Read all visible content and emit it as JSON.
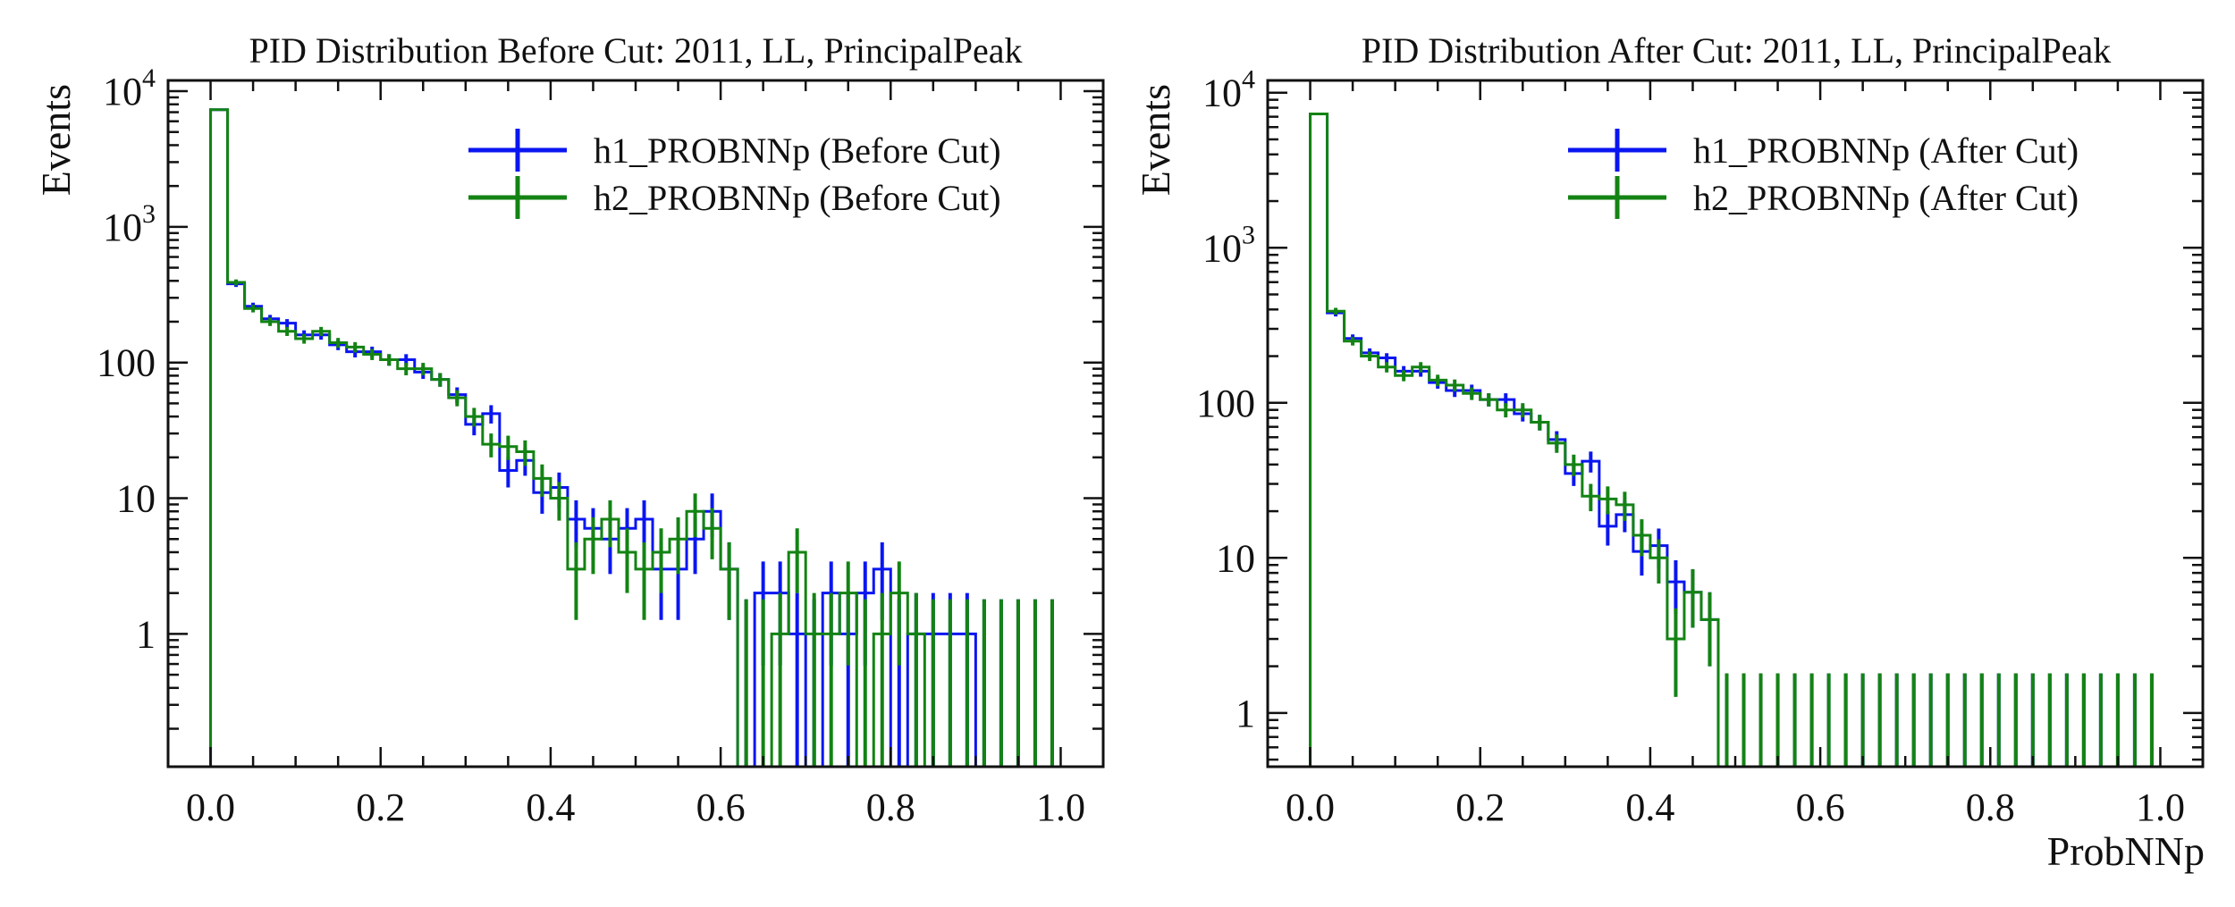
{
  "figure": {
    "xlabel": "ProbNNp"
  },
  "colors": {
    "h1": "#0a16f0",
    "h2": "#138313",
    "frame": "#111111"
  },
  "chart_data": [
    {
      "type": "histogram",
      "title": "PID Distribution Before Cut: 2011, LL, PrincipalPeak",
      "xlabel": "",
      "ylabel": "Events",
      "yscale": "log",
      "xlim": [
        -0.05,
        1.05
      ],
      "ylim": [
        0.105,
        12000
      ],
      "x_ticks": [
        "0.0",
        "0.2",
        "0.4",
        "0.6",
        "0.8",
        "1.0"
      ],
      "y_ticks": [
        {
          "value": 1,
          "base": "1",
          "exp": ""
        },
        {
          "value": 10,
          "base": "10",
          "exp": ""
        },
        {
          "value": 100,
          "base": "100",
          "exp": ""
        },
        {
          "value": 1000,
          "base": "10",
          "exp": "3"
        },
        {
          "value": 10000,
          "base": "10",
          "exp": "4"
        }
      ],
      "legend_position": "top-right",
      "bins": 50,
      "x_range": [
        0,
        1
      ],
      "series": [
        {
          "name": "h1_PROBNNp (Before Cut)",
          "color_key": "h1",
          "values": [
            7300,
            380,
            260,
            210,
            195,
            160,
            160,
            135,
            120,
            120,
            105,
            105,
            85,
            75,
            58,
            35,
            42,
            16,
            19,
            11,
            12,
            7,
            6,
            5,
            6,
            7,
            3,
            3,
            5,
            8,
            3,
            0,
            2,
            2,
            1,
            0,
            2,
            1,
            2,
            3,
            0,
            1,
            1,
            1,
            1,
            0,
            0,
            0,
            0,
            0
          ]
        },
        {
          "name": "h2_PROBNNp (Before Cut)",
          "color_key": "h2",
          "values": [
            7300,
            390,
            250,
            200,
            170,
            150,
            170,
            140,
            130,
            115,
            105,
            90,
            90,
            75,
            55,
            40,
            25,
            24,
            22,
            14,
            10,
            3,
            5,
            7,
            4,
            3,
            4,
            5,
            8,
            6,
            3,
            0,
            0,
            1,
            4,
            1,
            1,
            2,
            0,
            1,
            2,
            1,
            0,
            0,
            0,
            0,
            0,
            0,
            0,
            0
          ]
        }
      ]
    },
    {
      "type": "histogram",
      "title": "PID Distribution After Cut: 2011, LL, PrincipalPeak",
      "xlabel": "ProbNNp",
      "ylabel": "Events",
      "yscale": "log",
      "xlim": [
        -0.05,
        1.05
      ],
      "ylim": [
        0.45,
        12000
      ],
      "x_ticks": [
        "0.0",
        "0.2",
        "0.4",
        "0.6",
        "0.8",
        "1.0"
      ],
      "y_ticks": [
        {
          "value": 1,
          "base": "1",
          "exp": ""
        },
        {
          "value": 10,
          "base": "10",
          "exp": ""
        },
        {
          "value": 100,
          "base": "100",
          "exp": ""
        },
        {
          "value": 1000,
          "base": "10",
          "exp": "3"
        },
        {
          "value": 10000,
          "base": "10",
          "exp": "4"
        }
      ],
      "legend_position": "top-right",
      "bins": 50,
      "x_range": [
        0,
        1
      ],
      "series": [
        {
          "name": "h1_PROBNNp (After Cut)",
          "color_key": "h1",
          "values": [
            7300,
            380,
            260,
            210,
            195,
            160,
            160,
            135,
            120,
            120,
            105,
            105,
            85,
            75,
            58,
            35,
            42,
            16,
            19,
            11,
            12,
            7,
            6,
            4,
            0,
            0,
            0,
            0,
            0,
            0,
            0,
            0,
            0,
            0,
            0,
            0,
            0,
            0,
            0,
            0,
            0,
            0,
            0,
            0,
            0,
            0,
            0,
            0,
            0,
            0
          ]
        },
        {
          "name": "h2_PROBNNp (After Cut)",
          "color_key": "h2",
          "values": [
            7300,
            390,
            250,
            200,
            170,
            150,
            170,
            140,
            130,
            115,
            105,
            90,
            90,
            75,
            55,
            40,
            25,
            24,
            22,
            14,
            10,
            3,
            6,
            4,
            0,
            0,
            0,
            0,
            0,
            0,
            0,
            0,
            0,
            0,
            0,
            0,
            0,
            0,
            0,
            0,
            0,
            0,
            0,
            0,
            0,
            0,
            0,
            0,
            0,
            0
          ]
        }
      ]
    }
  ]
}
